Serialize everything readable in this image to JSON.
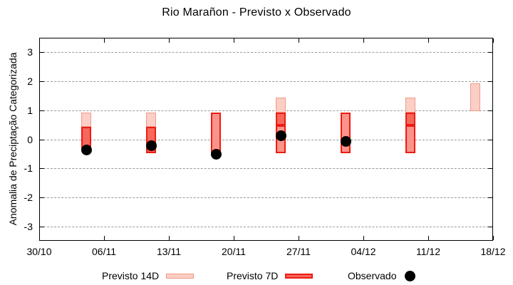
{
  "chart_data": {
    "type": "bar",
    "subtype": "range-bars-with-scatter-overlay",
    "title": "Rio Marañon - Previsto x Observado",
    "xlabel": "",
    "ylabel": "Anomalia de Preciptação Categorizada",
    "ylim": [
      -3.5,
      3.5
    ],
    "grid": "horizontal dashed lines at integer values, on",
    "legend_position": "bottom, outside plot",
    "x_ticks": [
      {
        "day": 0,
        "label": "30/10"
      },
      {
        "day": 7,
        "label": "06/11"
      },
      {
        "day": 14,
        "label": "13/11"
      },
      {
        "day": 21,
        "label": "20/11"
      },
      {
        "day": 28,
        "label": "27/11"
      },
      {
        "day": 35,
        "label": "04/12"
      },
      {
        "day": 42,
        "label": "11/12"
      },
      {
        "day": 49,
        "label": "18/12"
      }
    ],
    "y_ticks": [
      {
        "value": 3,
        "label": "3"
      },
      {
        "value": 2,
        "label": "2"
      },
      {
        "value": 1,
        "label": "1"
      },
      {
        "value": 0,
        "label": "0"
      },
      {
        "value": -1,
        "label": "-1"
      },
      {
        "value": -2,
        "label": "-2"
      },
      {
        "value": -3,
        "label": "-3"
      }
    ],
    "legend": [
      {
        "label": "Previsto 14D",
        "swatch": "light-pink-box"
      },
      {
        "label": "Previsto 7D",
        "swatch": "red-box"
      },
      {
        "label": "Observado",
        "swatch": "black-dot"
      }
    ],
    "series": [
      {
        "name": "Previsto 14D",
        "type": "range-bar",
        "ranges": [
          {
            "date": "04/11",
            "min": -0.35,
            "max": 0.95
          },
          {
            "date": "11/11",
            "min": -0.45,
            "max": 0.95
          },
          {
            "date": "25/11",
            "min": 0.5,
            "max": 1.45
          },
          {
            "date": "09/12",
            "min": 0.5,
            "max": 1.45
          },
          {
            "date": "16/12",
            "min": 1.0,
            "max": 1.95
          }
        ]
      },
      {
        "name": "Previsto 7D",
        "type": "range-bar",
        "ranges": [
          {
            "date": "04/11",
            "min": -0.35,
            "max": 0.45
          },
          {
            "date": "11/11",
            "min": -0.45,
            "max": 0.45
          },
          {
            "date": "18/11",
            "min": -0.5,
            "max": 0.95
          },
          {
            "date": "25/11",
            "min": -0.45,
            "max": 0.95
          },
          {
            "date": "02/12",
            "min": -0.45,
            "max": 0.95
          },
          {
            "date": "09/12",
            "min": -0.45,
            "max": 0.95
          }
        ]
      },
      {
        "name": "Observado",
        "type": "scatter",
        "points": [
          {
            "date": "04/11",
            "value": -0.35
          },
          {
            "date": "11/11",
            "value": -0.2
          },
          {
            "date": "18/11",
            "value": -0.5
          },
          {
            "date": "25/11",
            "value": 0.15
          },
          {
            "date": "02/12",
            "value": -0.05
          }
        ]
      }
    ],
    "bars_render": [
      {
        "day": 5,
        "label": "04/11",
        "segments": [
          {
            "kind": "p14",
            "from": 0.45,
            "to": 0.95
          },
          {
            "kind": "overlap",
            "from": -0.35,
            "to": 0.45
          }
        ],
        "obs": -0.35
      },
      {
        "day": 12,
        "label": "11/11",
        "segments": [
          {
            "kind": "p14",
            "from": 0.45,
            "to": 0.95
          },
          {
            "kind": "overlap",
            "from": -0.45,
            "to": 0.45
          }
        ],
        "obs": -0.2
      },
      {
        "day": 19,
        "label": "18/11",
        "segments": [
          {
            "kind": "p7",
            "from": -0.5,
            "to": 0.95
          }
        ],
        "obs": -0.5
      },
      {
        "day": 26,
        "label": "25/11",
        "segments": [
          {
            "kind": "p14",
            "from": 0.95,
            "to": 1.45
          },
          {
            "kind": "overlap",
            "from": 0.5,
            "to": 0.95
          },
          {
            "kind": "p7",
            "from": -0.45,
            "to": 0.5
          }
        ],
        "obs": 0.15
      },
      {
        "day": 33,
        "label": "02/12",
        "segments": [
          {
            "kind": "p7",
            "from": -0.45,
            "to": 0.95
          }
        ],
        "obs": -0.05
      },
      {
        "day": 40,
        "label": "09/12",
        "segments": [
          {
            "kind": "p14",
            "from": 0.95,
            "to": 1.45
          },
          {
            "kind": "overlap",
            "from": 0.5,
            "to": 0.95
          },
          {
            "kind": "p7",
            "from": -0.45,
            "to": 0.5
          }
        ],
        "obs": null
      },
      {
        "day": 47,
        "label": "16/12",
        "segments": [
          {
            "kind": "p14",
            "from": 1.0,
            "to": 1.95
          }
        ],
        "obs": null
      }
    ],
    "colors": {
      "p14_fill": "#fbcfc5",
      "p14_border": "#f0998b",
      "p7_fill": "#fa948a",
      "p7_border": "#ed1c12",
      "overlap_fill": "#f7685c",
      "overlap_border": "#ed1c12",
      "observado": "#000000",
      "grid": "#9a9a9a",
      "axis": "#000000"
    }
  }
}
